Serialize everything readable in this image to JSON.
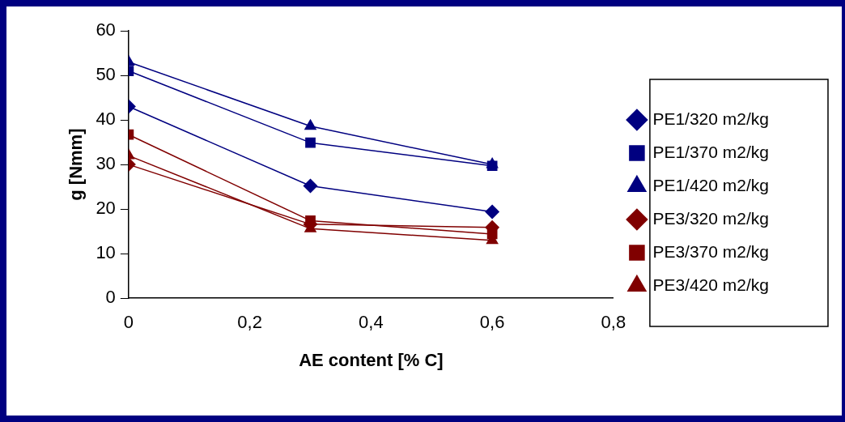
{
  "chart_data": {
    "type": "line",
    "xlabel": "AE content [% C]",
    "ylabel": "g [Nmm]",
    "x": [
      0,
      0.3,
      0.6
    ],
    "xlim": [
      0,
      0.8
    ],
    "xticks": [
      0,
      {
        "value": 0.2,
        "label": "0,2"
      },
      {
        "value": 0.4,
        "label": "0,4"
      },
      {
        "value": 0.6,
        "label": "0,6"
      },
      {
        "value": 0.8,
        "label": "0,8"
      }
    ],
    "ylim": [
      0,
      60
    ],
    "yticks": [
      0,
      10,
      20,
      30,
      40,
      50,
      60
    ],
    "grid": false,
    "legend": "right",
    "line_style": "solid",
    "series": [
      {
        "name": "PE1/320 m2/kg",
        "color": "#000080",
        "marker": "diamond",
        "values": [
          43,
          25.2,
          19.4
        ]
      },
      {
        "name": "PE1/370 m2/kg",
        "color": "#000080",
        "marker": "square",
        "values": [
          51,
          34.9,
          29.7
        ]
      },
      {
        "name": "PE1/420 m2/kg",
        "color": "#000080",
        "marker": "triangle",
        "values": [
          53,
          38.6,
          30
        ]
      },
      {
        "name": "PE3/320 m2/kg",
        "color": "#800000",
        "marker": "diamond",
        "values": [
          30,
          16.6,
          15.9
        ]
      },
      {
        "name": "PE3/370 m2/kg",
        "color": "#800000",
        "marker": "square",
        "values": [
          36.7,
          17.4,
          14.4
        ]
      },
      {
        "name": "PE3/420 m2/kg",
        "color": "#800000",
        "marker": "triangle",
        "values": [
          32,
          15.6,
          13
        ]
      }
    ]
  }
}
